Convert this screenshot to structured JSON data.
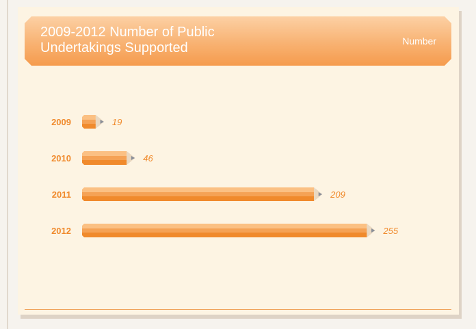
{
  "header": {
    "title": "2009-2012 Number of Public\nUndertakings Supported",
    "unit_label": "Number"
  },
  "colors": {
    "accent": "#f39a45",
    "bar_light": "#fbc083",
    "bar_dark": "#f08a2c",
    "year_label": "#f08a2c",
    "value_label": "#f08a2c",
    "background": "#fdf4e3"
  },
  "chart_data": {
    "type": "bar",
    "orientation": "horizontal",
    "title": "2009-2012 Number of Public Undertakings Supported",
    "unit": "Number",
    "categories": [
      "2009",
      "2010",
      "2011",
      "2012"
    ],
    "values": [
      19,
      46,
      209,
      255
    ],
    "value_labels": [
      "19",
      "46",
      "209",
      "255"
    ],
    "grid": false
  }
}
